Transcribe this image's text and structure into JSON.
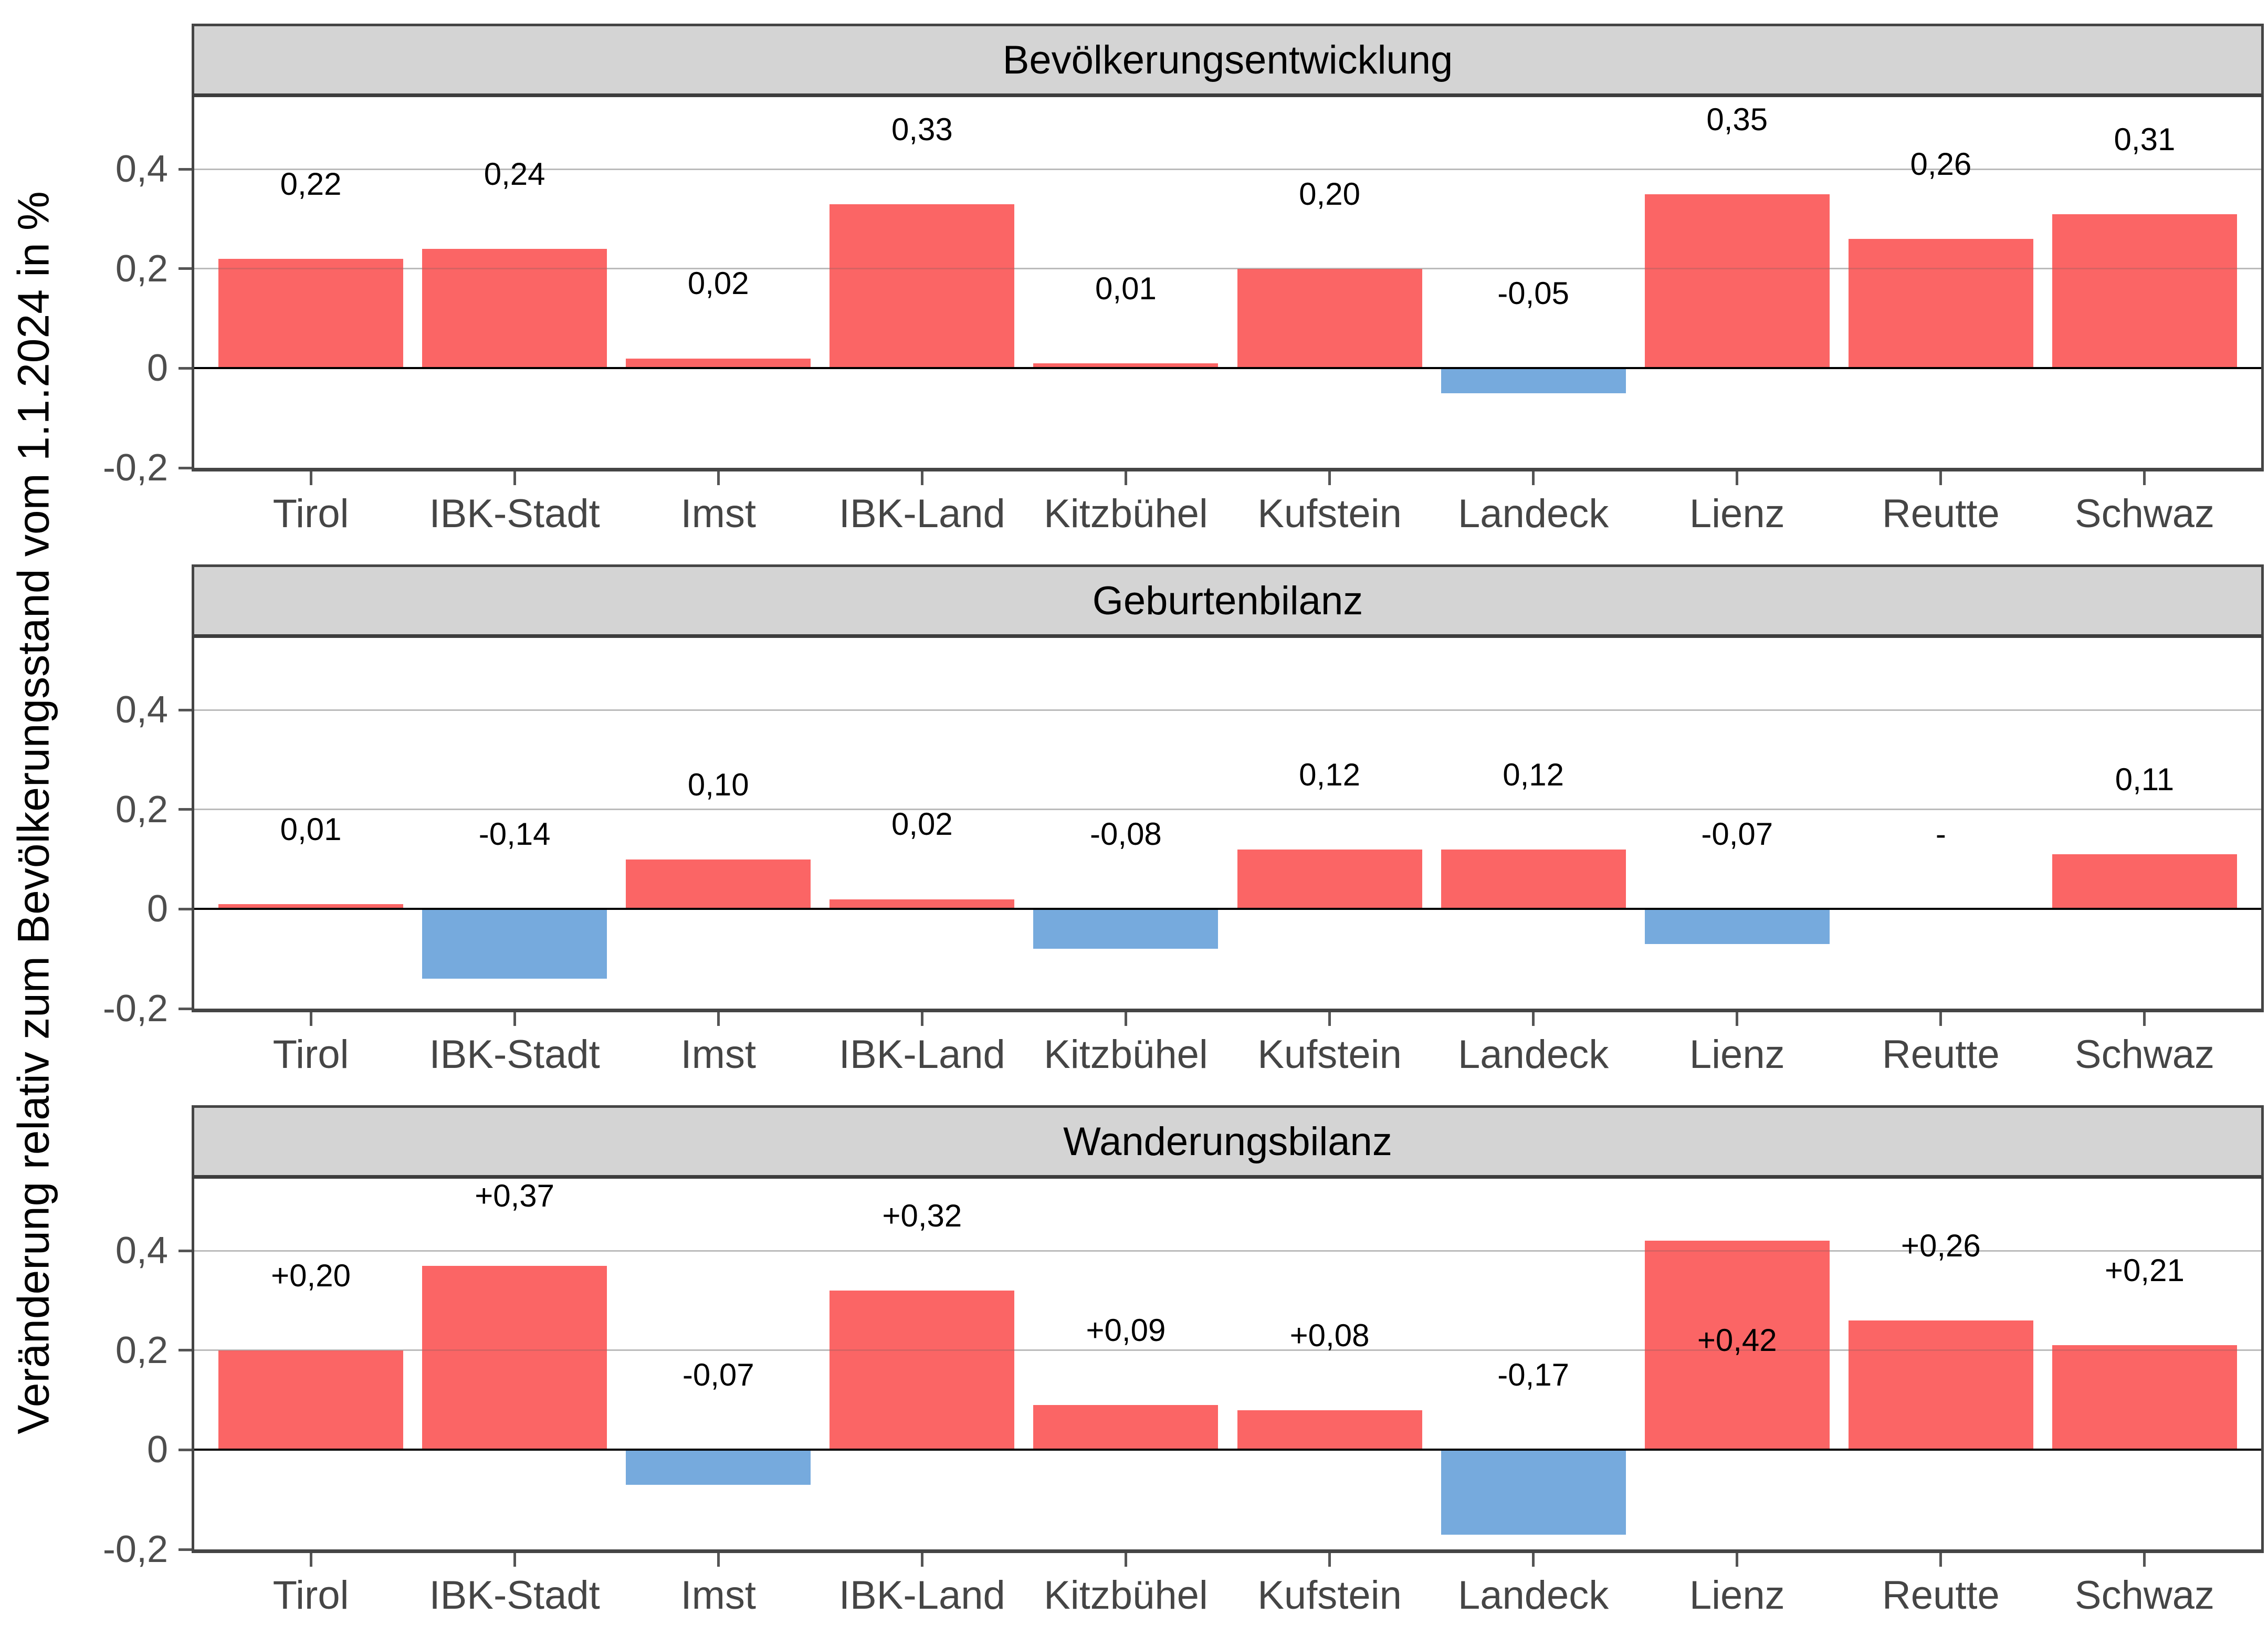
{
  "y_axis": {
    "title": "Veränderung relativ zum Bevölkerungsstand vom 1.1.2024 in %",
    "tick_values": [
      0.4,
      0.2,
      0,
      -0.2
    ],
    "tick_labels": [
      "0,4",
      "0,2",
      "0",
      "-0,2"
    ]
  },
  "colors": {
    "positive_bar": "#FB6565",
    "negative_bar": "#76AADD",
    "header_bg": "#D4D4D4",
    "panel_border": "#454545",
    "gridline": "#D6D6D6",
    "zero_line": "#000000",
    "axis_text": "#4D4D4D",
    "value_text": "#000000"
  },
  "chart_data": [
    {
      "type": "bar",
      "title": "Bevölkerungsentwicklung",
      "categories": [
        "Tirol",
        "IBK-Stadt",
        "Imst",
        "IBK-Land",
        "Kitzbühel",
        "Kufstein",
        "Landeck",
        "Lienz",
        "Reutte",
        "Schwaz"
      ],
      "values": [
        0.22,
        0.24,
        0.02,
        0.33,
        0.01,
        0.2,
        -0.05,
        0.35,
        0.26,
        0.31
      ],
      "value_labels": [
        "0,22",
        "0,24",
        "0,02",
        "0,33",
        "0,01",
        "0,20",
        "-0,05",
        "0,35",
        "0,26",
        "0,31"
      ],
      "ylim": [
        -0.2,
        0.545
      ],
      "yticks": [
        0.4,
        0.2,
        0,
        -0.2
      ],
      "gridlines": [
        0.4,
        0.2
      ],
      "zero_line": true,
      "grid": "horizontal-only",
      "legend": "none"
    },
    {
      "type": "bar",
      "title": "Geburtenbilanz",
      "categories": [
        "Tirol",
        "IBK-Stadt",
        "Imst",
        "IBK-Land",
        "Kitzbühel",
        "Kufstein",
        "Landeck",
        "Lienz",
        "Reutte",
        "Schwaz"
      ],
      "values": [
        0.01,
        -0.14,
        0.1,
        0.02,
        -0.08,
        0.12,
        0.12,
        -0.07,
        null,
        0.11
      ],
      "value_labels": [
        "0,01",
        "-0,14",
        "0,10",
        "0,02",
        "-0,08",
        "0,12",
        "0,12",
        "-0,07",
        "-",
        "0,11"
      ],
      "ylim": [
        -0.2,
        0.545
      ],
      "yticks": [
        0.4,
        0.2,
        0,
        -0.2
      ],
      "gridlines": [
        0.4,
        0.2
      ],
      "zero_line": true,
      "grid": "horizontal-only",
      "legend": "none"
    },
    {
      "type": "bar",
      "title": "Wanderungsbilanz",
      "categories": [
        "Tirol",
        "IBK-Stadt",
        "Imst",
        "IBK-Land",
        "Kitzbühel",
        "Kufstein",
        "Landeck",
        "Lienz",
        "Reutte",
        "Schwaz"
      ],
      "values": [
        0.2,
        0.37,
        -0.07,
        0.32,
        0.09,
        0.08,
        -0.17,
        0.42,
        0.26,
        0.21
      ],
      "value_labels": [
        "+0,20",
        "+0,37",
        "-0,07",
        "+0,32",
        "+0,09",
        "+0,08",
        "-0,17",
        "+0,42",
        "+0,26",
        "+0,21"
      ],
      "ylim": [
        -0.2,
        0.545
      ],
      "yticks": [
        0.4,
        0.2,
        0,
        -0.2
      ],
      "gridlines": [
        0.4,
        0.2
      ],
      "zero_line": true,
      "grid": "horizontal-only",
      "legend": "none"
    }
  ]
}
